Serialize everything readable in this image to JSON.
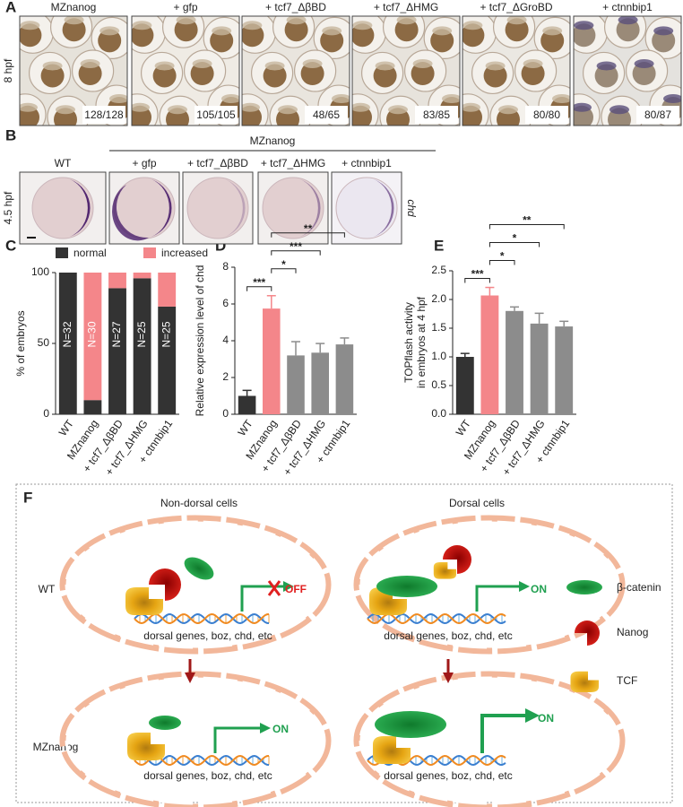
{
  "panel_labels": [
    "A",
    "B",
    "C",
    "D",
    "E",
    "F"
  ],
  "panel_a": {
    "stage": "8 hpf",
    "images": [
      {
        "label": "MZnanog",
        "count": "128/128"
      },
      {
        "label": "+ gfp",
        "count": "105/105"
      },
      {
        "label": "+ tcf7_ΔβBD",
        "count": "48/65"
      },
      {
        "label": "+ tcf7_ΔHMG",
        "count": "83/85"
      },
      {
        "label": "+ tcf7_ΔGroBD",
        "count": "80/80"
      },
      {
        "label": "+ ctnnbip1",
        "count": "80/87"
      }
    ]
  },
  "panel_b": {
    "stage": "4.5 hpf",
    "group": "MZnanog",
    "gene": "chd",
    "images": [
      "WT",
      "+ gfp",
      "+ tcf7_ΔβBD",
      "+ tcf7_ΔHMG",
      "+ ctnnbip1"
    ]
  },
  "chart_data": [
    {
      "type": "stacked_bar",
      "ylabel": [
        "% of embryos"
      ],
      "categories": [
        "WT",
        "MZnanog",
        "+ tcf7_ΔβBD",
        "+ tcf7_ΔHMG",
        "+ ctnnbip1"
      ],
      "series": [
        {
          "name": "normal",
          "color": "#333333",
          "values": [
            100,
            10,
            89,
            96,
            76
          ]
        },
        {
          "name": "increased",
          "color": "#f4868a",
          "values": [
            0,
            90,
            11,
            4,
            24
          ]
        }
      ],
      "annotations": [
        "N=32",
        "N=30",
        "N=27",
        "N=25",
        "N=25"
      ],
      "ylim": [
        0,
        100
      ],
      "yticks": [
        0,
        50,
        100
      ],
      "legend": "top"
    },
    {
      "type": "bar",
      "ylabel": [
        "Relative expression level of chd"
      ],
      "categories": [
        "WT",
        "MZnanog",
        "+ tcf7_ΔβBD",
        "+ tcf7_ΔHMG",
        "+ ctnnbip1"
      ],
      "values": [
        1.0,
        5.75,
        3.2,
        3.35,
        3.8
      ],
      "errors": [
        0.3,
        0.7,
        0.75,
        0.5,
        0.35
      ],
      "colors": [
        "#333333",
        "#f4868a",
        "#8c8c8c",
        "#8c8c8c",
        "#8c8c8c"
      ],
      "ylim": [
        0,
        8
      ],
      "yticks": [
        0,
        2,
        4,
        6,
        8
      ],
      "significance": [
        {
          "pair": [
            0,
            1
          ],
          "label": "***"
        },
        {
          "pair": [
            1,
            2
          ],
          "label": "*"
        },
        {
          "pair": [
            1,
            3
          ],
          "label": "***"
        },
        {
          "pair": [
            1,
            4
          ],
          "label": "**"
        }
      ]
    },
    {
      "type": "bar",
      "ylabel": [
        "TOPflash activity",
        "in embryos at 4 hpf"
      ],
      "categories": [
        "WT",
        "MZnanog",
        "+ tcf7_ΔβBD",
        "+ tcf7_ΔHMG",
        "+ ctnnbip1"
      ],
      "values": [
        1.0,
        2.07,
        1.8,
        1.58,
        1.53
      ],
      "errors": [
        0.06,
        0.14,
        0.07,
        0.18,
        0.09
      ],
      "colors": [
        "#333333",
        "#f4868a",
        "#8c8c8c",
        "#8c8c8c",
        "#8c8c8c"
      ],
      "ylim": [
        0,
        2.5
      ],
      "yticks": [
        {
          "value": 0,
          "label": "0.0"
        },
        0.5,
        {
          "value": 1,
          "label": "1.0"
        },
        1.5,
        {
          "value": 2,
          "label": "2.0"
        },
        2.5
      ],
      "significance": [
        {
          "pair": [
            0,
            1
          ],
          "label": "***"
        },
        {
          "pair": [
            1,
            2
          ],
          "label": "*"
        },
        {
          "pair": [
            1,
            3
          ],
          "label": "*"
        },
        {
          "pair": [
            1,
            4
          ],
          "label": "**"
        }
      ]
    }
  ],
  "panel_f": {
    "columns": [
      "Non-dorsal cells",
      "Dorsal cells"
    ],
    "rows": [
      "WT",
      "MZnanog"
    ],
    "states": [
      "OFF",
      "ON",
      "ON",
      "ON"
    ],
    "gene_labels": [
      "dorsal genes, boz, chd, etc",
      "dorsal genes, boz, chd, etc",
      "dorsal genes, boz, chd, etc",
      "dorsal genes, boz, chd, etc"
    ],
    "legend": [
      "β-catenin",
      "Nanog",
      "TCF"
    ]
  }
}
